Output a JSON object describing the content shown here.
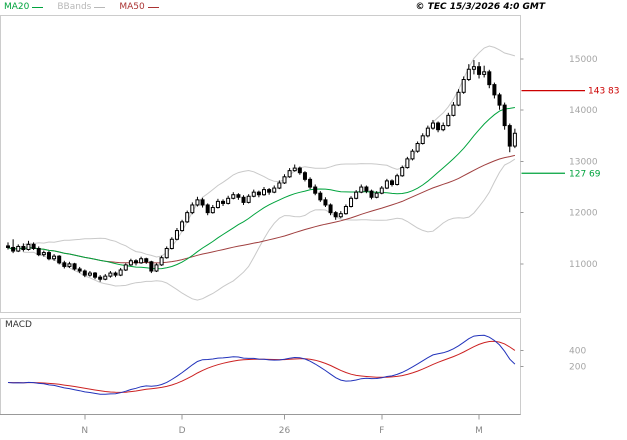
{
  "header": {
    "legend": [
      {
        "label": "MA20",
        "color": "#00A33D"
      },
      {
        "label": "BBands",
        "color": "#B8B8B8"
      },
      {
        "label": "MA50",
        "color": "#AA3333"
      }
    ],
    "copyright": "© TEC 15/3/2026 4:0 GMT"
  },
  "chart_data": {
    "type": "candlestick",
    "title": "",
    "xlabel": "",
    "ylabel": "",
    "grid": false,
    "price_axis": {
      "ticks": [
        15000,
        14000,
        13000,
        12000,
        11000
      ],
      "ylim": [
        10050,
        15850
      ]
    },
    "x_axis": {
      "labels": [
        "N",
        "D",
        "26",
        "F",
        "M"
      ],
      "tick_indices": [
        15,
        34,
        54,
        73,
        92
      ]
    },
    "levels": [
      {
        "value": 14383,
        "label": "143 83",
        "color": "#CC0000"
      },
      {
        "value": 12769,
        "label": "127 69",
        "color": "#00A33D"
      }
    ],
    "indicators": {
      "ma20": {
        "window": 20,
        "color": "#00A33D"
      },
      "ma50": {
        "window": 50,
        "color": "#A04040"
      },
      "bbands": {
        "window": 20,
        "mult": 2,
        "color": "#C9C9C9"
      }
    },
    "macd": {
      "label": "MACD",
      "fast": 12,
      "slow": 26,
      "signal": 9,
      "axis_ticks": [
        400,
        200
      ],
      "ylim": [
        -400,
        800
      ],
      "line_color": "#2233BB",
      "signal_color": "#CC2222"
    },
    "colors": {
      "candle": "#000000",
      "axis_text": "#A6A6A6",
      "frame": "#CCCCCC",
      "axis_line": "#999999",
      "month_text": "#8A8A8A"
    },
    "candles": [
      [
        11350,
        11420,
        11280,
        11320
      ],
      [
        11320,
        11480,
        11210,
        11250
      ],
      [
        11250,
        11380,
        11230,
        11340
      ],
      [
        11340,
        11400,
        11240,
        11280
      ],
      [
        11280,
        11450,
        11260,
        11380
      ],
      [
        11380,
        11420,
        11270,
        11300
      ],
      [
        11300,
        11340,
        11150,
        11180
      ],
      [
        11180,
        11260,
        11140,
        11220
      ],
      [
        11220,
        11250,
        11070,
        11100
      ],
      [
        11100,
        11190,
        11060,
        11150
      ],
      [
        11150,
        11170,
        10990,
        11020
      ],
      [
        11020,
        11060,
        10910,
        10950
      ],
      [
        10950,
        11040,
        10920,
        11000
      ],
      [
        11000,
        11020,
        10870,
        10900
      ],
      [
        10900,
        10940,
        10820,
        10860
      ],
      [
        10860,
        10890,
        10740,
        10780
      ],
      [
        10780,
        10860,
        10750,
        10820
      ],
      [
        10820,
        10840,
        10700,
        10740
      ],
      [
        10740,
        10780,
        10650,
        10700
      ],
      [
        10700,
        10800,
        10680,
        10760
      ],
      [
        10760,
        10860,
        10730,
        10820
      ],
      [
        10820,
        10850,
        10740,
        10780
      ],
      [
        10780,
        10920,
        10760,
        10880
      ],
      [
        10880,
        11010,
        10860,
        10980
      ],
      [
        10980,
        11100,
        10960,
        11060
      ],
      [
        11060,
        11090,
        10970,
        11020
      ],
      [
        11020,
        11140,
        11000,
        11100
      ],
      [
        11100,
        11120,
        11000,
        11040
      ],
      [
        11040,
        11060,
        10820,
        10860
      ],
      [
        10860,
        11010,
        10840,
        10980
      ],
      [
        10980,
        11160,
        10960,
        11120
      ],
      [
        11120,
        11340,
        11100,
        11300
      ],
      [
        11300,
        11520,
        11280,
        11480
      ],
      [
        11480,
        11700,
        11460,
        11650
      ],
      [
        11650,
        11860,
        11630,
        11820
      ],
      [
        11820,
        12040,
        11800,
        12000
      ],
      [
        12000,
        12200,
        11970,
        12150
      ],
      [
        12150,
        12310,
        12120,
        12250
      ],
      [
        12250,
        12290,
        12100,
        12150
      ],
      [
        12150,
        12180,
        11950,
        12000
      ],
      [
        12000,
        12150,
        11980,
        12100
      ],
      [
        12100,
        12270,
        12080,
        12220
      ],
      [
        12220,
        12260,
        12130,
        12180
      ],
      [
        12180,
        12330,
        12160,
        12280
      ],
      [
        12280,
        12400,
        12260,
        12350
      ],
      [
        12350,
        12380,
        12250,
        12300
      ],
      [
        12300,
        12340,
        12150,
        12200
      ],
      [
        12200,
        12360,
        12180,
        12320
      ],
      [
        12320,
        12450,
        12300,
        12400
      ],
      [
        12400,
        12430,
        12300,
        12350
      ],
      [
        12350,
        12500,
        12330,
        12450
      ],
      [
        12450,
        12480,
        12350,
        12400
      ],
      [
        12400,
        12530,
        12380,
        12480
      ],
      [
        12480,
        12630,
        12460,
        12580
      ],
      [
        12580,
        12750,
        12560,
        12700
      ],
      [
        12700,
        12870,
        12680,
        12820
      ],
      [
        12820,
        12940,
        12800,
        12870
      ],
      [
        12870,
        12900,
        12740,
        12780
      ],
      [
        12780,
        12810,
        12610,
        12650
      ],
      [
        12650,
        12690,
        12460,
        12500
      ],
      [
        12500,
        12550,
        12340,
        12380
      ],
      [
        12380,
        12420,
        12210,
        12250
      ],
      [
        12250,
        12300,
        12110,
        12150
      ],
      [
        12150,
        12180,
        11950,
        12000
      ],
      [
        12000,
        12030,
        11860,
        11920
      ],
      [
        11920,
        12030,
        11890,
        11980
      ],
      [
        11980,
        12160,
        11960,
        12120
      ],
      [
        12120,
        12320,
        12100,
        12280
      ],
      [
        12280,
        12440,
        12260,
        12400
      ],
      [
        12400,
        12550,
        12380,
        12500
      ],
      [
        12500,
        12530,
        12380,
        12420
      ],
      [
        12420,
        12450,
        12260,
        12300
      ],
      [
        12300,
        12420,
        12280,
        12380
      ],
      [
        12380,
        12520,
        12360,
        12480
      ],
      [
        12480,
        12660,
        12460,
        12620
      ],
      [
        12620,
        12650,
        12510,
        12550
      ],
      [
        12550,
        12760,
        12530,
        12720
      ],
      [
        12720,
        12920,
        12700,
        12880
      ],
      [
        12880,
        13090,
        12860,
        13050
      ],
      [
        13050,
        13240,
        13020,
        13200
      ],
      [
        13200,
        13390,
        13170,
        13350
      ],
      [
        13350,
        13550,
        13330,
        13500
      ],
      [
        13500,
        13700,
        13470,
        13650
      ],
      [
        13650,
        13810,
        13620,
        13750
      ],
      [
        13750,
        13780,
        13570,
        13620
      ],
      [
        13620,
        13760,
        13590,
        13700
      ],
      [
        13700,
        13950,
        13680,
        13900
      ],
      [
        13900,
        14160,
        13880,
        14100
      ],
      [
        14100,
        14410,
        14080,
        14350
      ],
      [
        14350,
        14660,
        14320,
        14600
      ],
      [
        14600,
        14900,
        14570,
        14800
      ],
      [
        14800,
        14980,
        14700,
        14850
      ],
      [
        14850,
        14940,
        14620,
        14700
      ],
      [
        14700,
        14870,
        14640,
        14750
      ],
      [
        14750,
        14790,
        14430,
        14500
      ],
      [
        14500,
        14540,
        14230,
        14300
      ],
      [
        14300,
        14340,
        14010,
        14100
      ],
      [
        14100,
        14150,
        13620,
        13700
      ],
      [
        13700,
        13740,
        13180,
        13300
      ],
      [
        13300,
        13640,
        13260,
        13550
      ]
    ]
  }
}
